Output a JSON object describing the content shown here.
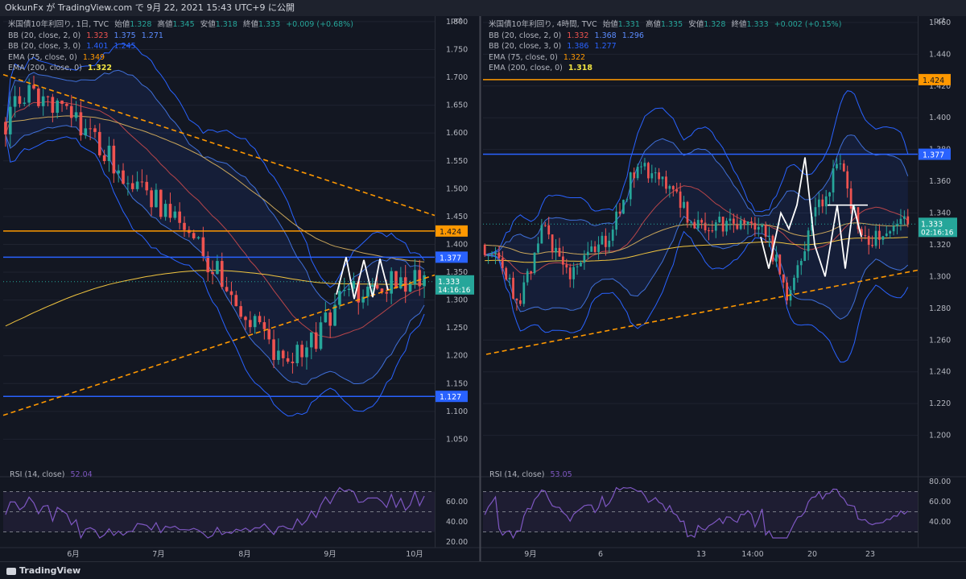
{
  "header": {
    "title": "OkkunFx が TradingView.com で 9月 22, 2021 15:43 UTC+9 に公開"
  },
  "footer": {
    "brand": "TradingView"
  },
  "colors": {
    "bg": "#131722",
    "up": "#26a69a",
    "down": "#ef5350",
    "bb": "#2962ff",
    "ema75": "#ef5350",
    "ema200": "#f0c43f",
    "orange": "#ff9800",
    "rsi": "#7e57c2",
    "grid": "#1f2330",
    "white": "#ffffff"
  },
  "chart_data": [
    {
      "type": "candlestick",
      "panel": "left",
      "unit": "pct",
      "legend": [
        {
          "label": "米国債10年利回り, 1日, TVC",
          "o_label": "始値",
          "o": "1.328",
          "h_label": "高値",
          "h": "1.345",
          "l_label": "安値",
          "l": "1.318",
          "c_label": "終値",
          "c": "1.333",
          "chg": "+0.009 (+0.68%)"
        },
        {
          "label": "BB (20, close, 2, 0)",
          "values": [
            "1.323",
            "1.375",
            "1.271"
          ]
        },
        {
          "label": "BB (20, close, 3, 0)",
          "values": [
            "1.401",
            "1.245"
          ]
        },
        {
          "label": "EMA (75, close, 0)",
          "values": [
            "1.349"
          ]
        },
        {
          "label": "EMA (200, close, 0)",
          "values": [
            "1.322"
          ]
        }
      ],
      "ylim": [
        1.0,
        1.81
      ],
      "y_ticks": [
        "1.800",
        "1.750",
        "1.700",
        "1.650",
        "1.600",
        "1.550",
        "1.500",
        "1.450",
        "1.400",
        "1.350",
        "1.300",
        "1.250",
        "1.200",
        "1.150",
        "1.100",
        "1.050"
      ],
      "x_ticks": [
        "6月",
        "7月",
        "8月",
        "9月",
        "10月"
      ],
      "horizontal_levels": [
        {
          "value": 1.424,
          "label": "1.424",
          "color": "#ff9800"
        },
        {
          "value": 1.377,
          "label": "1.377",
          "color": "#2962ff"
        },
        {
          "value": 1.127,
          "label": "1.127",
          "color": "#2962ff"
        }
      ],
      "price_tag": {
        "value": 1.333,
        "label": "1.333",
        "countdown": "14:16:16"
      },
      "rsi": {
        "label": "RSI (14, close)",
        "value": "52.04",
        "ticks": [
          "60.00",
          "40.00",
          "20.00"
        ]
      }
    },
    {
      "type": "candlestick",
      "panel": "right",
      "unit": "pct",
      "legend": [
        {
          "label": "米国債10年利回り, 4時間, TVC",
          "o_label": "始値",
          "o": "1.331",
          "h_label": "高値",
          "h": "1.335",
          "l_label": "安値",
          "l": "1.328",
          "c_label": "終値",
          "c": "1.333",
          "chg": "+0.002 (+0.15%)"
        },
        {
          "label": "BB (20, close, 2, 0)",
          "values": [
            "1.332",
            "1.368",
            "1.296"
          ]
        },
        {
          "label": "BB (20, close, 3, 0)",
          "values": [
            "1.386",
            "1.277"
          ]
        },
        {
          "label": "EMA (75, close, 0)",
          "values": [
            "1.322"
          ]
        },
        {
          "label": "EMA (200, close, 0)",
          "values": [
            "1.318"
          ]
        }
      ],
      "ylim": [
        1.18,
        1.464
      ],
      "y_ticks": [
        "1.460",
        "1.440",
        "1.420",
        "1.400",
        "1.380",
        "1.360",
        "1.340",
        "1.320",
        "1.300",
        "1.280",
        "1.260",
        "1.240",
        "1.220",
        "1.200"
      ],
      "x_ticks": [
        "9月",
        "6",
        "13",
        "14:00",
        "20",
        "23"
      ],
      "horizontal_levels": [
        {
          "value": 1.424,
          "label": "1.424",
          "color": "#ff9800"
        },
        {
          "value": 1.377,
          "label": "1.377",
          "color": "#2962ff"
        }
      ],
      "price_tag": {
        "value": 1.333,
        "label": "1.333",
        "countdown": "02:16:16"
      },
      "rsi": {
        "label": "RSI (14, close)",
        "value": "53.05",
        "ticks": [
          "80.00",
          "60.00",
          "40.00"
        ]
      }
    }
  ]
}
